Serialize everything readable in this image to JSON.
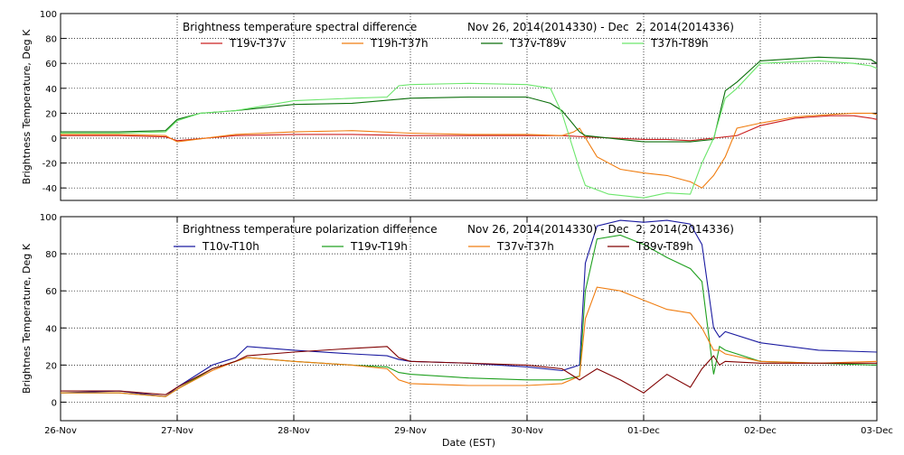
{
  "chart_data": [
    {
      "type": "line",
      "title": "Brightness temperature spectral difference",
      "date_range": "Nov 26, 2014(2014330) - Dec  2, 2014(2014336)",
      "ylabel": "Brightness Temperature, Deg K",
      "xlim": [
        0,
        7
      ],
      "ylim": [
        -50,
        100
      ],
      "yticks": [
        -40,
        -20,
        0,
        20,
        40,
        60,
        80,
        100
      ],
      "grid": true,
      "legend_placement": "top",
      "series": [
        {
          "name": "T19v-T37v",
          "color": "#cc2020",
          "x": [
            0,
            0.5,
            0.9,
            1.0,
            1.5,
            2.0,
            2.5,
            3.0,
            3.5,
            4.0,
            4.3,
            4.5,
            5.0,
            5.2,
            5.4,
            5.6,
            5.8,
            6.0,
            6.3,
            6.6,
            6.8,
            6.95,
            7.0
          ],
          "y": [
            2,
            2,
            1,
            -2,
            2,
            3,
            3,
            2,
            2,
            2,
            2,
            1,
            -1,
            -1,
            -2,
            0,
            2,
            10,
            16,
            18,
            18,
            16,
            15
          ]
        },
        {
          "name": "T19h-T37h",
          "color": "#f07d10",
          "x": [
            0,
            0.5,
            0.9,
            1.0,
            1.5,
            2.0,
            2.5,
            3.0,
            3.5,
            4.0,
            4.3,
            4.4,
            4.45,
            4.6,
            4.8,
            5.0,
            5.2,
            5.4,
            5.5,
            5.6,
            5.7,
            5.8,
            6.0,
            6.3,
            6.6,
            6.8,
            6.95,
            7.0
          ],
          "y": [
            3,
            3,
            2,
            -3,
            3,
            5,
            6,
            4,
            3,
            3,
            2,
            5,
            8,
            -15,
            -25,
            -28,
            -30,
            -35,
            -40,
            -30,
            -15,
            8,
            12,
            17,
            19,
            20,
            20,
            19
          ]
        },
        {
          "name": "T37v-T89v",
          "color": "#0a6e0a",
          "x": [
            0,
            0.5,
            0.9,
            1.0,
            1.2,
            1.5,
            2.0,
            2.5,
            3.0,
            3.5,
            4.0,
            4.2,
            4.3,
            4.45,
            4.5,
            5.0,
            5.4,
            5.6,
            5.7,
            5.8,
            6.0,
            6.5,
            6.8,
            6.95,
            7.0
          ],
          "y": [
            5,
            5,
            6,
            15,
            20,
            22,
            27,
            28,
            32,
            33,
            33,
            28,
            22,
            5,
            2,
            -3,
            -3,
            -1,
            38,
            45,
            62,
            65,
            64,
            63,
            60
          ]
        },
        {
          "name": "T37h-T89h",
          "color": "#6ce66c",
          "x": [
            0,
            0.5,
            0.9,
            1.0,
            1.2,
            1.5,
            2.0,
            2.5,
            2.8,
            2.9,
            3.0,
            3.5,
            4.0,
            4.2,
            4.3,
            4.45,
            4.5,
            4.7,
            5.0,
            5.2,
            5.4,
            5.5,
            5.6,
            5.7,
            5.8,
            6.0,
            6.5,
            6.8,
            6.95,
            7.0
          ],
          "y": [
            4,
            4,
            5,
            14,
            20,
            22,
            30,
            32,
            33,
            42,
            43,
            44,
            43,
            40,
            20,
            -25,
            -38,
            -45,
            -48,
            -44,
            -45,
            -20,
            0,
            32,
            40,
            60,
            62,
            60,
            58,
            56
          ]
        }
      ]
    },
    {
      "type": "line",
      "title": "Brightness temperature polarization difference",
      "date_range": "Nov 26, 2014(2014330) - Dec  2, 2014(2014336)",
      "ylabel": "Brightnes Temperature, Deg K",
      "xlabel": "Date (EST)",
      "xlim": [
        0,
        7
      ],
      "ylim": [
        -10,
        100
      ],
      "yticks": [
        0,
        20,
        40,
        60,
        80,
        100
      ],
      "xticks": [
        "26-Nov",
        "27-Nov",
        "28-Nov",
        "29-Nov",
        "30-Nov",
        "01-Dec",
        "02-Dec",
        "03-Dec"
      ],
      "grid": true,
      "legend_placement": "top",
      "series": [
        {
          "name": "T10v-T10h",
          "color": "#1a1aa0",
          "x": [
            0,
            0.5,
            0.9,
            1.0,
            1.3,
            1.5,
            1.6,
            2.0,
            2.5,
            2.8,
            2.9,
            3.0,
            3.5,
            4.0,
            4.3,
            4.45,
            4.5,
            4.6,
            4.8,
            5.0,
            5.2,
            5.4,
            5.5,
            5.6,
            5.65,
            5.7,
            6.0,
            6.5,
            7.0
          ],
          "y": [
            5,
            6,
            3,
            8,
            20,
            24,
            30,
            28,
            26,
            25,
            23,
            22,
            21,
            19,
            17,
            20,
            75,
            95,
            98,
            97,
            98,
            96,
            85,
            40,
            35,
            38,
            32,
            28,
            27
          ]
        },
        {
          "name": "T19v-T19h",
          "color": "#20a020",
          "x": [
            0,
            0.5,
            0.9,
            1.0,
            1.3,
            1.5,
            1.6,
            2.0,
            2.5,
            2.8,
            2.9,
            3.0,
            3.5,
            4.0,
            4.3,
            4.45,
            4.5,
            4.6,
            4.8,
            5.0,
            5.2,
            5.4,
            5.5,
            5.6,
            5.65,
            5.7,
            6.0,
            6.5,
            7.0
          ],
          "y": [
            5,
            5,
            3,
            7,
            18,
            22,
            24,
            22,
            20,
            19,
            16,
            15,
            13,
            12,
            12,
            14,
            60,
            88,
            90,
            85,
            78,
            72,
            65,
            15,
            30,
            28,
            22,
            21,
            20
          ]
        },
        {
          "name": "T37v-T37h",
          "color": "#f07d10",
          "x": [
            0,
            0.5,
            0.9,
            1.0,
            1.3,
            1.5,
            1.6,
            2.0,
            2.5,
            2.8,
            2.9,
            3.0,
            3.5,
            4.0,
            4.3,
            4.45,
            4.5,
            4.6,
            4.8,
            5.0,
            5.2,
            5.4,
            5.5,
            5.6,
            5.65,
            5.7,
            6.0,
            6.5,
            7.0
          ],
          "y": [
            5,
            5,
            3,
            7,
            17,
            22,
            24,
            22,
            20,
            18,
            12,
            10,
            9,
            9,
            10,
            14,
            45,
            62,
            60,
            55,
            50,
            48,
            40,
            28,
            28,
            26,
            22,
            21,
            22
          ]
        },
        {
          "name": "T89v-T89h",
          "color": "#800000",
          "x": [
            0,
            0.5,
            0.9,
            1.0,
            1.3,
            1.5,
            1.6,
            2.0,
            2.5,
            2.8,
            2.9,
            3.0,
            3.5,
            4.0,
            4.3,
            4.45,
            4.5,
            4.6,
            4.8,
            5.0,
            5.2,
            5.4,
            5.5,
            5.6,
            5.65,
            5.7,
            6.0,
            6.5,
            7.0
          ],
          "y": [
            6,
            6,
            4,
            8,
            18,
            22,
            25,
            27,
            29,
            30,
            24,
            22,
            21,
            20,
            18,
            12,
            14,
            18,
            12,
            5,
            15,
            8,
            18,
            25,
            20,
            22,
            21,
            21,
            21
          ]
        }
      ]
    }
  ]
}
